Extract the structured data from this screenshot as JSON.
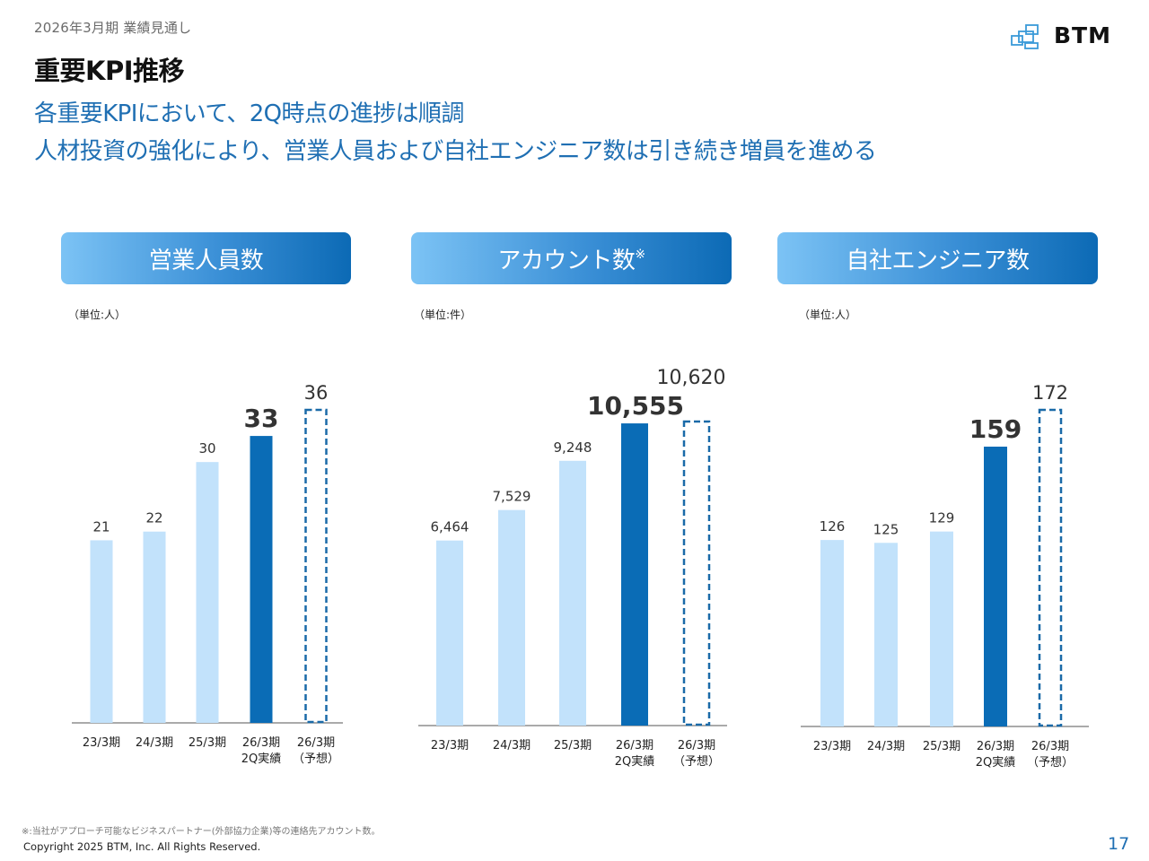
{
  "header": {
    "eyebrow": "2026年3月期  業績見通し",
    "title": "重要KPI推移",
    "lead_lines": [
      "各重要KPIにおいて、2Q時点の進捗は順調",
      "人材投資の強化により、営業人員および自社エンジニア数は引き続き増員を進める"
    ],
    "logo_text": "BTM"
  },
  "colors": {
    "past_bar": "#c2e2fb",
    "actual_bar": "#0a6cb6",
    "forecast_outline": "#1a6aa8",
    "highlight_label": "#1a6fb0",
    "accent_text": "#1f6fb3"
  },
  "chart_data": [
    {
      "type": "bar",
      "title": "営業人員数",
      "title_suffix": "",
      "unit_label": "（単位:人）",
      "categories": [
        "23/3期",
        "24/3期",
        "25/3期",
        "26/3期\n2Q実績",
        "26/3期\n（予想）"
      ],
      "category_lines": [
        [
          "23/3期"
        ],
        [
          "24/3期"
        ],
        [
          "25/3期"
        ],
        [
          "26/3期",
          "2Q実績"
        ],
        [
          "26/3期",
          "（予想）"
        ]
      ],
      "values": [
        21,
        22,
        30,
        33,
        36
      ],
      "value_labels": [
        "21",
        "22",
        "30",
        "33",
        "36"
      ],
      "bar_styles": [
        "past",
        "past",
        "past",
        "actual",
        "forecast"
      ],
      "ylim": [
        0,
        36
      ],
      "xlabel": "",
      "ylabel": "",
      "grid": false,
      "legend": "none"
    },
    {
      "type": "bar",
      "title": "アカウント数",
      "title_suffix": "※",
      "unit_label": "（単位:件）",
      "categories": [
        "23/3期",
        "24/3期",
        "25/3期",
        "26/3期\n2Q実績",
        "26/3期\n（予想）"
      ],
      "category_lines": [
        [
          "23/3期"
        ],
        [
          "24/3期"
        ],
        [
          "25/3期"
        ],
        [
          "26/3期",
          "2Q実績"
        ],
        [
          "26/3期",
          "（予想）"
        ]
      ],
      "values": [
        6464,
        7529,
        9248,
        10555,
        10620
      ],
      "value_labels": [
        "6,464",
        "7,529",
        "9,248",
        "10,555",
        "10,620"
      ],
      "bar_styles": [
        "past",
        "past",
        "past",
        "actual",
        "forecast"
      ],
      "ylim": [
        0,
        10620
      ],
      "xlabel": "",
      "ylabel": "",
      "grid": false,
      "legend": "none"
    },
    {
      "type": "bar",
      "title": "自社エンジニア数",
      "title_suffix": "",
      "unit_label": "（単位:人）",
      "categories": [
        "23/3期",
        "24/3期",
        "25/3期",
        "26/3期\n2Q実績",
        "26/3期\n（予想）"
      ],
      "category_lines": [
        [
          "23/3期"
        ],
        [
          "24/3期"
        ],
        [
          "25/3期"
        ],
        [
          "26/3期",
          "2Q実績"
        ],
        [
          "26/3期",
          "（予想）"
        ]
      ],
      "values": [
        126,
        125,
        129,
        159,
        172
      ],
      "value_labels": [
        "126",
        "125",
        "129",
        "159",
        "172"
      ],
      "bar_styles": [
        "past",
        "past",
        "past",
        "actual",
        "forecast"
      ],
      "ylim": [
        0,
        172
      ],
      "xlabel": "",
      "ylabel": "",
      "grid": false,
      "legend": "none"
    }
  ],
  "footer": {
    "footnote": "※:当社がアプローチ可能なビジネスパートナー(外部協力企業)等の連絡先アカウント数。",
    "copyright": "Copyright 2025 BTM, Inc. All Rights Reserved.",
    "page_number": "17"
  }
}
